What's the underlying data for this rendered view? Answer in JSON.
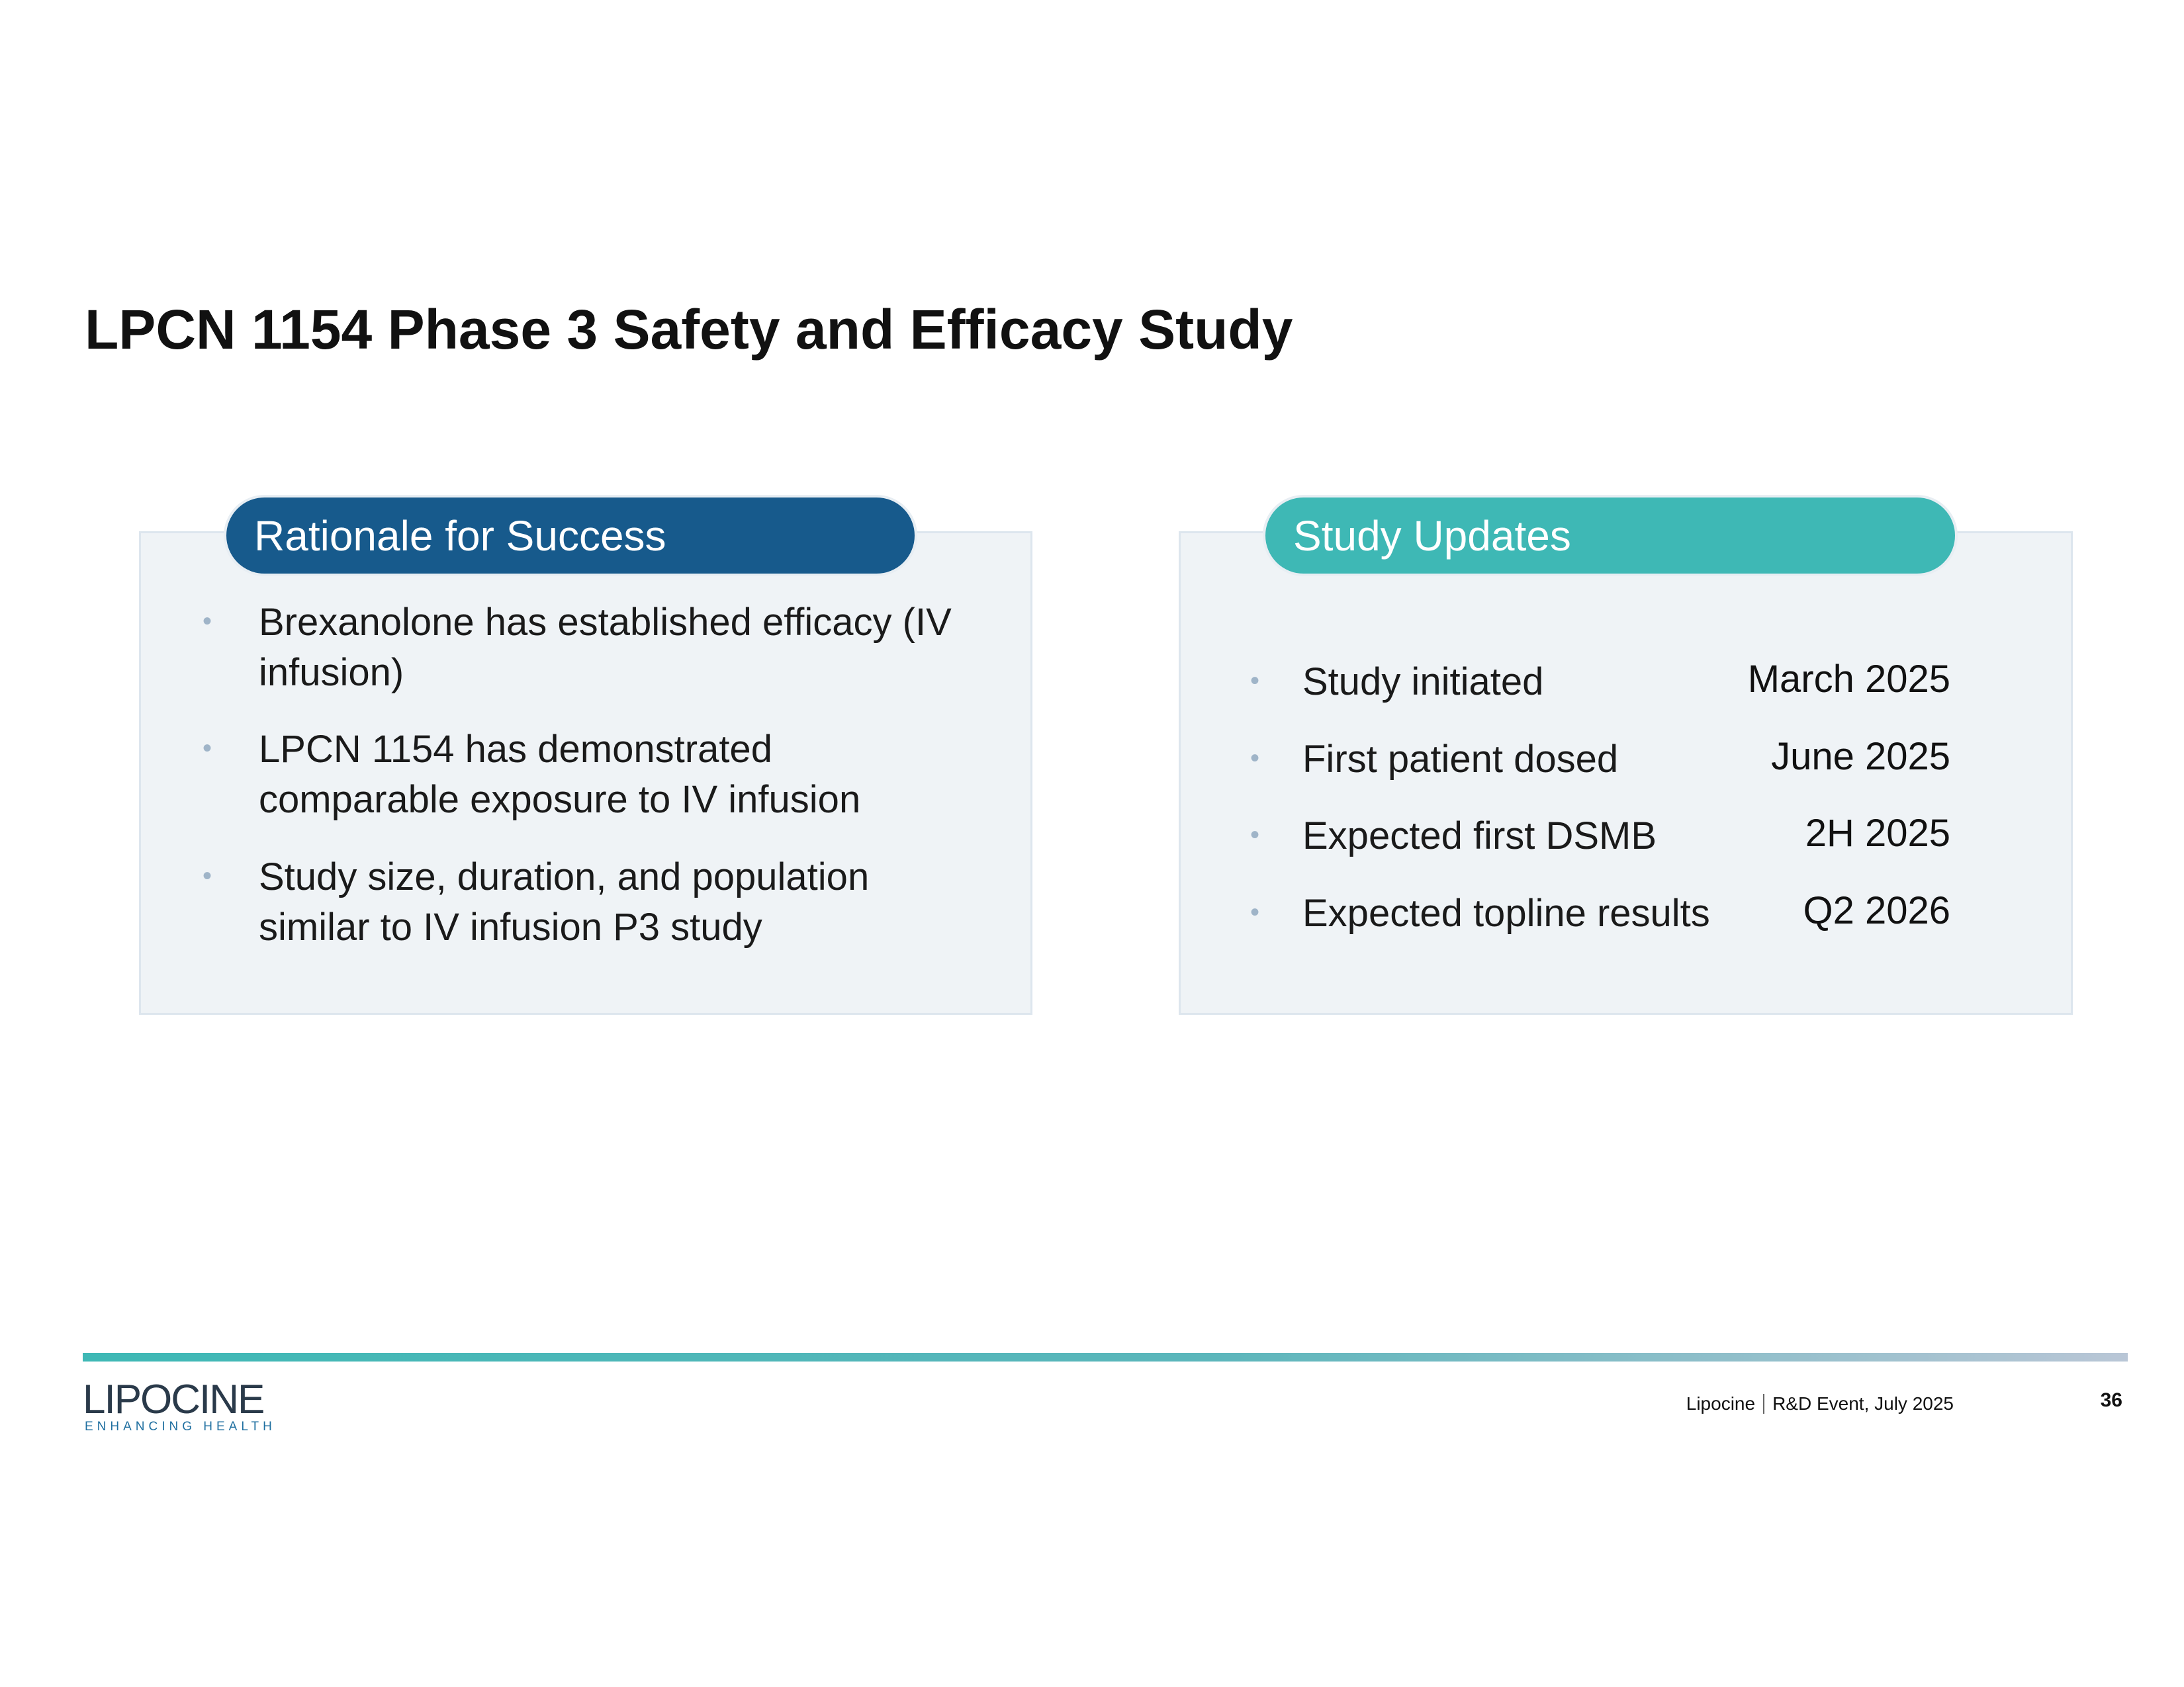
{
  "title": "LPCN 1154 Phase 3 Safety and Efficacy Study",
  "rationale": {
    "heading": "Rationale for Success",
    "bullets": [
      "Brexanolone has established efficacy (IV infusion)",
      "LPCN 1154 has demonstrated comparable exposure to IV infusion",
      "Study size, duration, and population similar to IV infusion P3 study"
    ]
  },
  "updates": {
    "heading": "Study Updates",
    "items": [
      {
        "label": "Study initiated",
        "date": "March 2025"
      },
      {
        "label": "First patient dosed",
        "date": "June 2025"
      },
      {
        "label": "Expected first DSMB",
        "date": "2H 2025"
      },
      {
        "label": "Expected topline results",
        "date": "Q2 2026"
      }
    ]
  },
  "logo": {
    "name": "LIPOCINE",
    "tagline": "ENHANCING HEALTH"
  },
  "footer": {
    "company": "Lipocine",
    "event": "R&D Event, July 2025",
    "page": "36"
  }
}
